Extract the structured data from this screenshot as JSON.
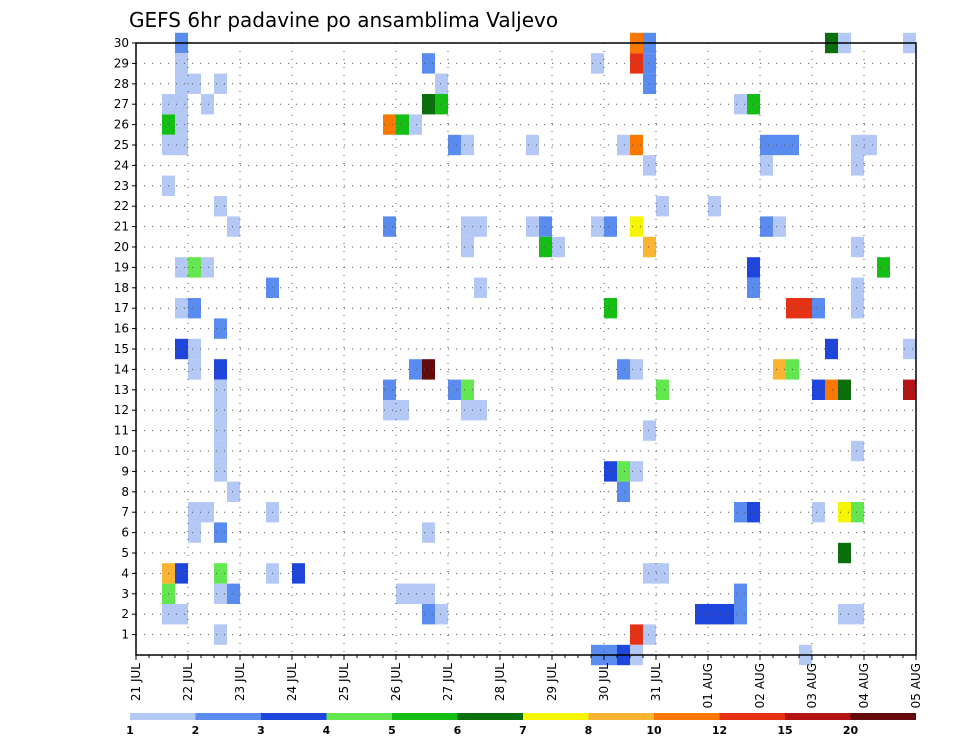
{
  "chart_data": {
    "type": "heatmap",
    "title": "GEFS 6hr padavine po ansamblima Valjevo",
    "x_ticks": [
      "21 JUL",
      "22 JUL",
      "23 JUL",
      "24 JUL",
      "25 JUL",
      "26 JUL",
      "27 JUL",
      "28 JUL",
      "29 JUL",
      "30 JUL",
      "31 JUL",
      "01 AUG",
      "02 AUG",
      "03 AUG",
      "04 AUG",
      "05 AUG"
    ],
    "y_ticks": [
      1,
      2,
      3,
      4,
      5,
      6,
      7,
      8,
      9,
      10,
      11,
      12,
      13,
      14,
      15,
      16,
      17,
      18,
      19,
      20,
      21,
      22,
      23,
      24,
      25,
      26,
      27,
      28,
      29,
      30
    ],
    "ylim": [
      0,
      30
    ],
    "x_steps": 60,
    "steps_per_day": 4,
    "grid": true,
    "levels": [
      {
        "value": "1",
        "color": "#b4c8f5"
      },
      {
        "value": "2",
        "color": "#5a8cf0"
      },
      {
        "value": "3",
        "color": "#1e46dc"
      },
      {
        "value": "4",
        "color": "#64e650"
      },
      {
        "value": "5",
        "color": "#14be14"
      },
      {
        "value": "6",
        "color": "#0a6e0a"
      },
      {
        "value": "7",
        "color": "#f5f500"
      },
      {
        "value": "8",
        "color": "#fab432"
      },
      {
        "value": "10",
        "color": "#fa7800"
      },
      {
        "value": "12",
        "color": "#e63214"
      },
      {
        "value": "15",
        "color": "#b41414"
      },
      {
        "value": "20",
        "color": "#640a0a"
      }
    ],
    "cells_columns": [
      "time_step",
      "member",
      "level_index"
    ],
    "cells": [
      [
        3,
        30,
        1
      ],
      [
        3,
        29,
        0
      ],
      [
        3,
        28,
        0
      ],
      [
        4,
        28,
        0
      ],
      [
        2,
        27,
        0
      ],
      [
        3,
        27,
        0
      ],
      [
        2,
        26,
        4
      ],
      [
        3,
        26,
        0
      ],
      [
        2,
        25,
        0
      ],
      [
        3,
        25,
        0
      ],
      [
        2,
        23,
        0
      ],
      [
        3,
        19,
        0
      ],
      [
        4,
        19,
        3
      ],
      [
        3,
        17,
        0
      ],
      [
        4,
        17,
        1
      ],
      [
        3,
        15,
        2
      ],
      [
        4,
        15,
        0
      ],
      [
        4,
        14,
        0
      ],
      [
        4,
        7,
        0
      ],
      [
        5,
        7,
        0
      ],
      [
        4,
        6,
        0
      ],
      [
        2,
        4,
        7
      ],
      [
        3,
        4,
        2
      ],
      [
        2,
        3,
        3
      ],
      [
        2,
        2,
        0
      ],
      [
        3,
        2,
        0
      ],
      [
        6,
        28,
        0
      ],
      [
        5,
        27,
        0
      ],
      [
        6,
        22,
        0
      ],
      [
        7,
        21,
        0
      ],
      [
        5,
        19,
        0
      ],
      [
        6,
        16,
        1
      ],
      [
        6,
        14,
        2
      ],
      [
        6,
        13,
        0
      ],
      [
        6,
        12,
        0
      ],
      [
        6,
        11,
        0
      ],
      [
        6,
        10,
        0
      ],
      [
        6,
        9,
        0
      ],
      [
        7,
        8,
        0
      ],
      [
        6,
        6,
        1
      ],
      [
        6,
        4,
        3
      ],
      [
        6,
        3,
        0
      ],
      [
        7,
        3,
        1
      ],
      [
        6,
        1,
        0
      ],
      [
        10,
        18,
        1
      ],
      [
        10,
        7,
        0
      ],
      [
        10,
        4,
        0
      ],
      [
        12,
        4,
        2
      ],
      [
        19,
        26,
        8
      ],
      [
        20,
        26,
        4
      ],
      [
        21,
        26,
        0
      ],
      [
        19,
        21,
        1
      ],
      [
        21,
        14,
        1
      ],
      [
        22,
        14,
        11
      ],
      [
        19,
        13,
        1
      ],
      [
        19,
        12,
        0
      ],
      [
        20,
        12,
        0
      ],
      [
        22,
        6,
        0
      ],
      [
        20,
        3,
        0
      ],
      [
        21,
        3,
        0
      ],
      [
        22,
        3,
        0
      ],
      [
        22,
        29,
        1
      ],
      [
        23,
        28,
        0
      ],
      [
        22,
        27,
        5
      ],
      [
        23,
        27,
        4
      ],
      [
        24,
        25,
        1
      ],
      [
        25,
        25,
        0
      ],
      [
        25,
        21,
        0
      ],
      [
        26,
        21,
        0
      ],
      [
        25,
        20,
        0
      ],
      [
        26,
        18,
        0
      ],
      [
        24,
        13,
        1
      ],
      [
        25,
        13,
        3
      ],
      [
        25,
        12,
        0
      ],
      [
        26,
        12,
        0
      ],
      [
        22,
        2,
        1
      ],
      [
        23,
        2,
        0
      ],
      [
        30,
        25,
        0
      ],
      [
        30,
        21,
        0
      ],
      [
        31,
        21,
        1
      ],
      [
        31,
        20,
        4
      ],
      [
        32,
        20,
        0
      ],
      [
        35,
        29,
        0
      ],
      [
        35,
        21,
        0
      ],
      [
        36,
        21,
        1
      ],
      [
        36,
        9,
        2
      ],
      [
        37,
        9,
        3
      ],
      [
        38,
        9,
        0
      ],
      [
        37,
        8,
        1
      ],
      [
        36,
        17,
        4
      ],
      [
        37,
        14,
        1
      ],
      [
        38,
        14,
        0
      ],
      [
        38,
        30,
        8
      ],
      [
        39,
        30,
        1
      ],
      [
        38,
        29,
        9
      ],
      [
        39,
        29,
        1
      ],
      [
        39,
        28,
        1
      ],
      [
        37,
        25,
        0
      ],
      [
        38,
        25,
        8
      ],
      [
        39,
        24,
        0
      ],
      [
        38,
        21,
        6
      ],
      [
        39,
        20,
        7
      ],
      [
        40,
        22,
        0
      ],
      [
        39,
        11,
        0
      ],
      [
        40,
        13,
        3
      ],
      [
        39,
        4,
        0
      ],
      [
        40,
        4,
        0
      ],
      [
        38,
        1,
        9
      ],
      [
        39,
        1,
        0
      ],
      [
        35,
        0,
        1
      ],
      [
        36,
        0,
        1
      ],
      [
        37,
        0,
        2
      ],
      [
        38,
        0,
        0
      ],
      [
        44,
        22,
        0
      ],
      [
        46,
        27,
        0
      ],
      [
        47,
        27,
        4
      ],
      [
        48,
        25,
        1
      ],
      [
        49,
        25,
        1
      ],
      [
        50,
        25,
        1
      ],
      [
        48,
        24,
        0
      ],
      [
        48,
        21,
        1
      ],
      [
        49,
        21,
        0
      ],
      [
        47,
        19,
        2
      ],
      [
        47,
        18,
        1
      ],
      [
        50,
        17,
        9
      ],
      [
        51,
        17,
        9
      ],
      [
        52,
        17,
        1
      ],
      [
        49,
        14,
        7
      ],
      [
        50,
        14,
        3
      ],
      [
        46,
        7,
        1
      ],
      [
        47,
        7,
        2
      ],
      [
        43,
        2,
        2
      ],
      [
        44,
        2,
        2
      ],
      [
        45,
        2,
        2
      ],
      [
        46,
        2,
        1
      ],
      [
        46,
        3,
        1
      ],
      [
        51,
        0,
        0
      ],
      [
        53,
        30,
        5
      ],
      [
        54,
        30,
        0
      ],
      [
        55,
        25,
        0
      ],
      [
        56,
        25,
        0
      ],
      [
        55,
        24,
        0
      ],
      [
        55,
        20,
        0
      ],
      [
        57,
        19,
        4
      ],
      [
        55,
        18,
        0
      ],
      [
        55,
        17,
        0
      ],
      [
        53,
        15,
        2
      ],
      [
        52,
        13,
        2
      ],
      [
        53,
        13,
        8
      ],
      [
        54,
        13,
        5
      ],
      [
        59,
        15,
        0
      ],
      [
        59,
        13,
        10
      ],
      [
        55,
        10,
        0
      ],
      [
        52,
        7,
        0
      ],
      [
        54,
        7,
        6
      ],
      [
        55,
        7,
        3
      ],
      [
        54,
        5,
        5
      ],
      [
        54,
        2,
        0
      ],
      [
        55,
        2,
        0
      ],
      [
        59,
        30,
        0
      ]
    ]
  }
}
